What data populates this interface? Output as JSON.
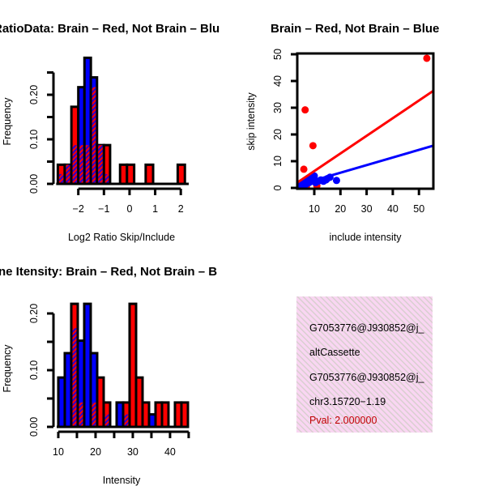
{
  "colors": {
    "red": "#ff0000",
    "blue": "#0000ff",
    "overlap": "#8e1a9e",
    "info_bg": "#f8d8f0",
    "pval": "#c00000"
  },
  "chart_data": [
    {
      "type": "bar",
      "id": "ratio",
      "title": "RatioData: Brain – Red, Not Brain – Blu",
      "xlabel": "Log2 Ratio Skip/Include",
      "ylabel": "Frequency",
      "xlim": [
        -2.97,
        2.31
      ],
      "ylim": [
        0,
        0.25
      ],
      "xticks": [
        -2,
        -1,
        0,
        1,
        2
      ],
      "xtick_labels": [
        "−2",
        "−1",
        "0",
        "1",
        "2"
      ],
      "yticks": [
        0,
        0.05,
        0.1,
        0.15,
        0.2,
        0.25
      ],
      "ytick_labels": [
        "0.00",
        "",
        "0.10",
        "",
        "0.20",
        ""
      ],
      "series_names": [
        "Brain (red)",
        "Not Brain (blue)"
      ],
      "bars": [
        {
          "x0": -2.8,
          "x1": -2.53,
          "red": 0.043,
          "blue": 0.022
        },
        {
          "x0": -2.53,
          "x1": -2.27,
          "red": 0.043,
          "blue": 0.043
        },
        {
          "x0": -2.27,
          "x1": -2.0,
          "red": 0.173,
          "blue": 0.087
        },
        {
          "x0": -2.0,
          "x1": -1.76,
          "red": 0.087,
          "blue": 0.217
        },
        {
          "x0": -1.76,
          "x1": -1.51,
          "red": 0.087,
          "blue": 0.283
        },
        {
          "x0": -1.51,
          "x1": -1.27,
          "red": 0.217,
          "blue": 0.239
        },
        {
          "x0": -1.27,
          "x1": -1.0,
          "red": 0.087,
          "blue": 0.087
        },
        {
          "x0": -1.0,
          "x1": -0.76,
          "red": 0.087,
          "blue": 0.022
        },
        {
          "x0": -0.37,
          "x1": -0.1,
          "red": 0.043,
          "blue": 0
        },
        {
          "x0": -0.1,
          "x1": 0.18,
          "red": 0.043,
          "blue": 0
        },
        {
          "x0": 0.63,
          "x1": 0.92,
          "red": 0.043,
          "blue": 0
        },
        {
          "x0": 1.88,
          "x1": 2.16,
          "red": 0.043,
          "blue": 0
        }
      ]
    },
    {
      "type": "scatter",
      "id": "scatter",
      "title": "Brain – Red, Not Brain – Blue",
      "xlabel": "include intensity",
      "ylabel": "skip intensity",
      "xlim": [
        3.5,
        55.5
      ],
      "ylim": [
        -0.3,
        50.3
      ],
      "xticks": [
        10,
        20,
        30,
        40,
        50
      ],
      "xtick_labels": [
        "10",
        "20",
        "30",
        "40",
        "50"
      ],
      "yticks": [
        0,
        10,
        20,
        30,
        40,
        50
      ],
      "ytick_labels": [
        "0",
        "10",
        "20",
        "30",
        "40",
        "50"
      ],
      "series": [
        {
          "name": "Brain",
          "color": "red",
          "points": [
            [
              6.5,
              29.2
            ],
            [
              9.5,
              15.8
            ],
            [
              6.0,
              7.0
            ],
            [
              53.0,
              48.5
            ],
            [
              7.0,
              0.5
            ],
            [
              11.0,
              0.8
            ],
            [
              5.0,
              1.0
            ]
          ],
          "fit": {
            "slope": 0.66,
            "intercept": -0.3
          }
        },
        {
          "name": "Not Brain",
          "color": "blue",
          "points": [
            [
              4.0,
              1.0
            ],
            [
              4.5,
              0.5
            ],
            [
              5.0,
              1.5
            ],
            [
              5.5,
              2.0
            ],
            [
              6.0,
              1.0
            ],
            [
              6.5,
              2.5
            ],
            [
              7.0,
              1.5
            ],
            [
              7.5,
              3.0
            ],
            [
              8.0,
              2.0
            ],
            [
              8.5,
              3.5
            ],
            [
              9.0,
              2.5
            ],
            [
              9.5,
              4.0
            ],
            [
              10.0,
              3.0
            ],
            [
              10.0,
              4.5
            ],
            [
              10.5,
              2.0
            ],
            [
              11.5,
              2.5
            ],
            [
              12.5,
              3.0
            ],
            [
              13.5,
              2.5
            ],
            [
              14.5,
              3.0
            ],
            [
              15.0,
              3.5
            ],
            [
              16.0,
              4.0
            ],
            [
              18.5,
              2.8
            ]
          ],
          "fit": {
            "slope": 0.285,
            "intercept": 0.0
          }
        }
      ]
    },
    {
      "type": "bar",
      "id": "intensity",
      "title": "ne Itensity: Brain – Red, Not Brain – B",
      "xlabel": "Intensity",
      "ylabel": "Frequency",
      "xlim": [
        8.7,
        44.8
      ],
      "ylim": [
        0,
        0.22
      ],
      "xticks": [
        10,
        15,
        20,
        25,
        30,
        35,
        40,
        45
      ],
      "xtick_labels": [
        "10",
        "",
        "20",
        "",
        "30",
        "",
        "40",
        ""
      ],
      "yticks": [
        0,
        0.05,
        0.1,
        0.15,
        0.2
      ],
      "ytick_labels": [
        "0.00",
        "",
        "0.10",
        "",
        "0.20"
      ],
      "bin_start": 10,
      "bin_width": 1.74,
      "red": [
        0,
        0,
        0.217,
        0.043,
        0,
        0.043,
        0.087,
        0.043,
        0,
        0,
        0.043,
        0.217,
        0.087,
        0.043,
        0,
        0.043,
        0.043,
        0,
        0.043,
        0.043
      ],
      "blue": [
        0.087,
        0.13,
        0.174,
        0.152,
        0.217,
        0.13,
        0,
        0.022,
        0,
        0.043,
        0.022,
        0,
        0,
        0,
        0.022,
        0,
        0,
        0,
        0,
        0
      ]
    }
  ],
  "info_box": {
    "lines": [
      "G7053776@J930852@j_",
      "altCassette",
      "G7053776@J930852@j_",
      "chr3.15720−1.19"
    ],
    "pval": "Pval: 2.000000"
  }
}
